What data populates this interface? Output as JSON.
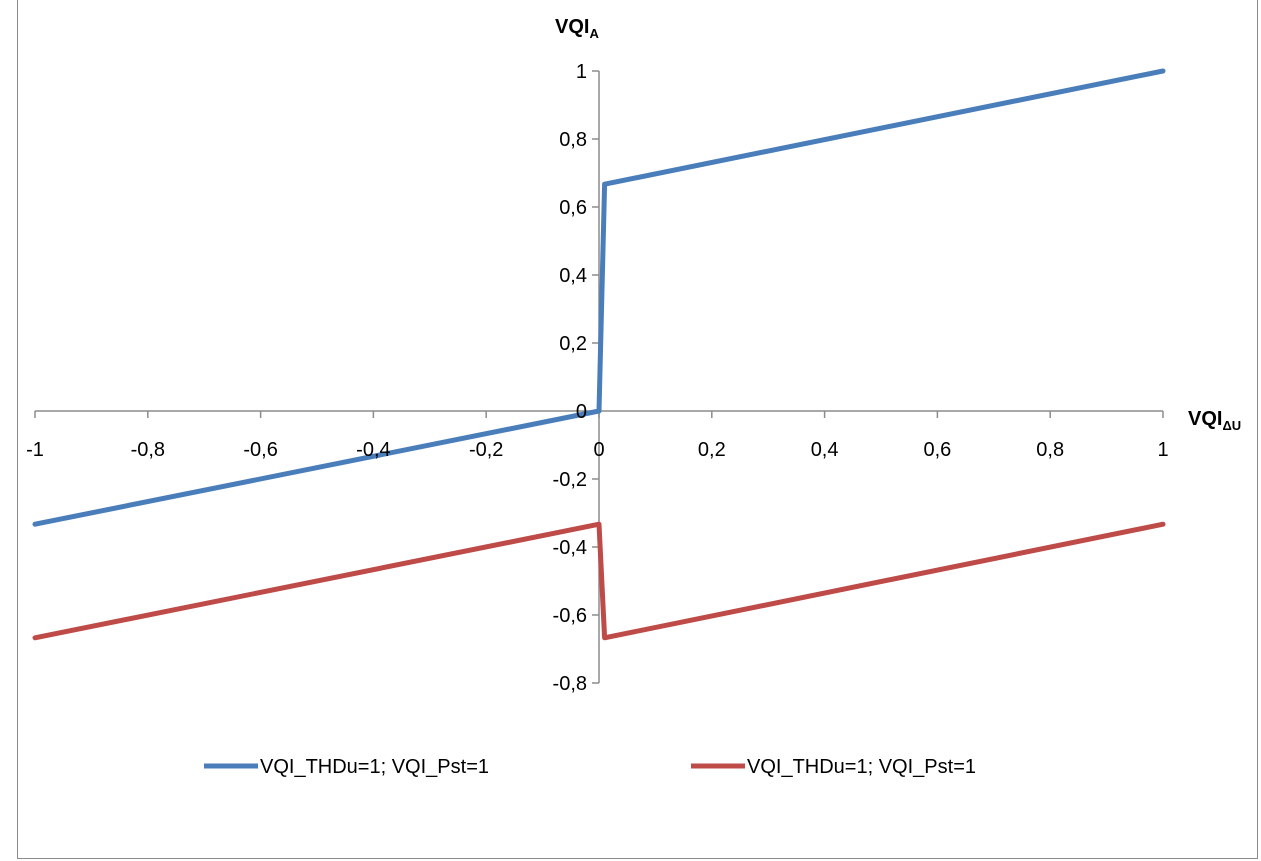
{
  "chart_data": {
    "type": "line",
    "title": "",
    "xlabel": "VQI",
    "xlabel_sub": "ΔU",
    "ylabel": "VQI",
    "ylabel_sub": "A",
    "xlim": [
      -1,
      1
    ],
    "ylim": [
      -0.8,
      1
    ],
    "x_ticks": [
      -1,
      -0.8,
      -0.6,
      -0.4,
      -0.2,
      0,
      0.2,
      0.4,
      0.6,
      0.8,
      1
    ],
    "x_tick_labels": [
      "-1",
      "-0,8",
      "-0,6",
      "-0,4",
      "-0,2",
      "0",
      "0,2",
      "0,4",
      "0,6",
      "0,8",
      "1"
    ],
    "y_ticks": [
      -0.8,
      -0.6,
      -0.4,
      -0.2,
      0,
      0.2,
      0.4,
      0.6,
      0.8,
      1
    ],
    "y_tick_labels": [
      "-0,8",
      "-0,6",
      "-0,4",
      "-0,2",
      "0",
      "0,2",
      "0,4",
      "0,6",
      "0,8",
      "1"
    ],
    "grid": false,
    "legend_position": "bottom",
    "series": [
      {
        "name": "VQI_THDu=1; VQI_Pst=1",
        "color": "#4a7ebb",
        "x": [
          -1,
          0,
          0.01,
          1
        ],
        "y": [
          -0.333,
          0,
          0.667,
          1
        ]
      },
      {
        "name": "VQI_THDu=1; VQI_Pst=1",
        "color": "#be4b48",
        "x": [
          -1,
          0,
          0.01,
          1
        ],
        "y": [
          -0.667,
          -0.333,
          -0.667,
          -0.333
        ]
      }
    ]
  }
}
